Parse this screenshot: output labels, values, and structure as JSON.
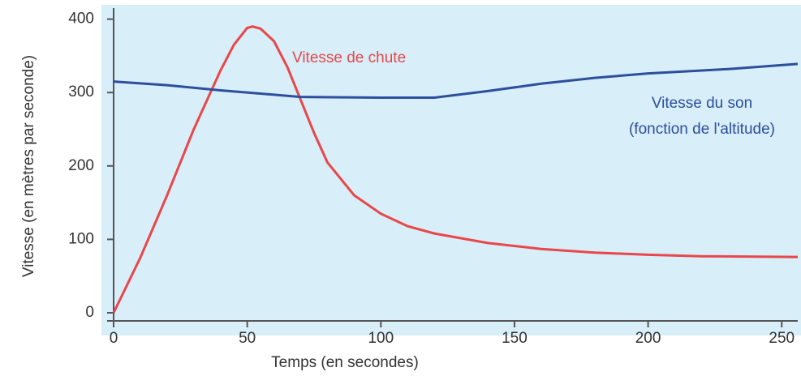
{
  "chart_data": {
    "type": "line",
    "xlabel": "Temps (en secondes)",
    "ylabel": "Vitesse (en mètres par seconde)",
    "xlim": [
      0,
      256
    ],
    "ylim": [
      0,
      415
    ],
    "xticks": [
      0,
      50,
      100,
      150,
      200,
      250
    ],
    "yticks": [
      0,
      100,
      200,
      300,
      400
    ],
    "series": [
      {
        "name": "Vitesse de chute",
        "color": "#e8474b",
        "x": [
          0,
          10,
          20,
          30,
          40,
          45,
          50,
          52,
          55,
          60,
          65,
          70,
          75,
          80,
          90,
          100,
          110,
          120,
          140,
          160,
          180,
          200,
          220,
          256
        ],
        "values": [
          0,
          75,
          160,
          250,
          330,
          365,
          388,
          390,
          387,
          370,
          335,
          290,
          245,
          205,
          160,
          135,
          118,
          108,
          95,
          87,
          82,
          79,
          77,
          76
        ]
      },
      {
        "name": "Vitesse du son",
        "color": "#2c4f9e",
        "x": [
          0,
          20,
          40,
          60,
          70,
          100,
          120,
          140,
          160,
          180,
          200,
          230,
          256
        ],
        "values": [
          315,
          310,
          303,
          297,
          294,
          293,
          293,
          302,
          312,
          320,
          326,
          332,
          339
        ]
      }
    ],
    "annotation": "(fonction de l'altitude)"
  }
}
